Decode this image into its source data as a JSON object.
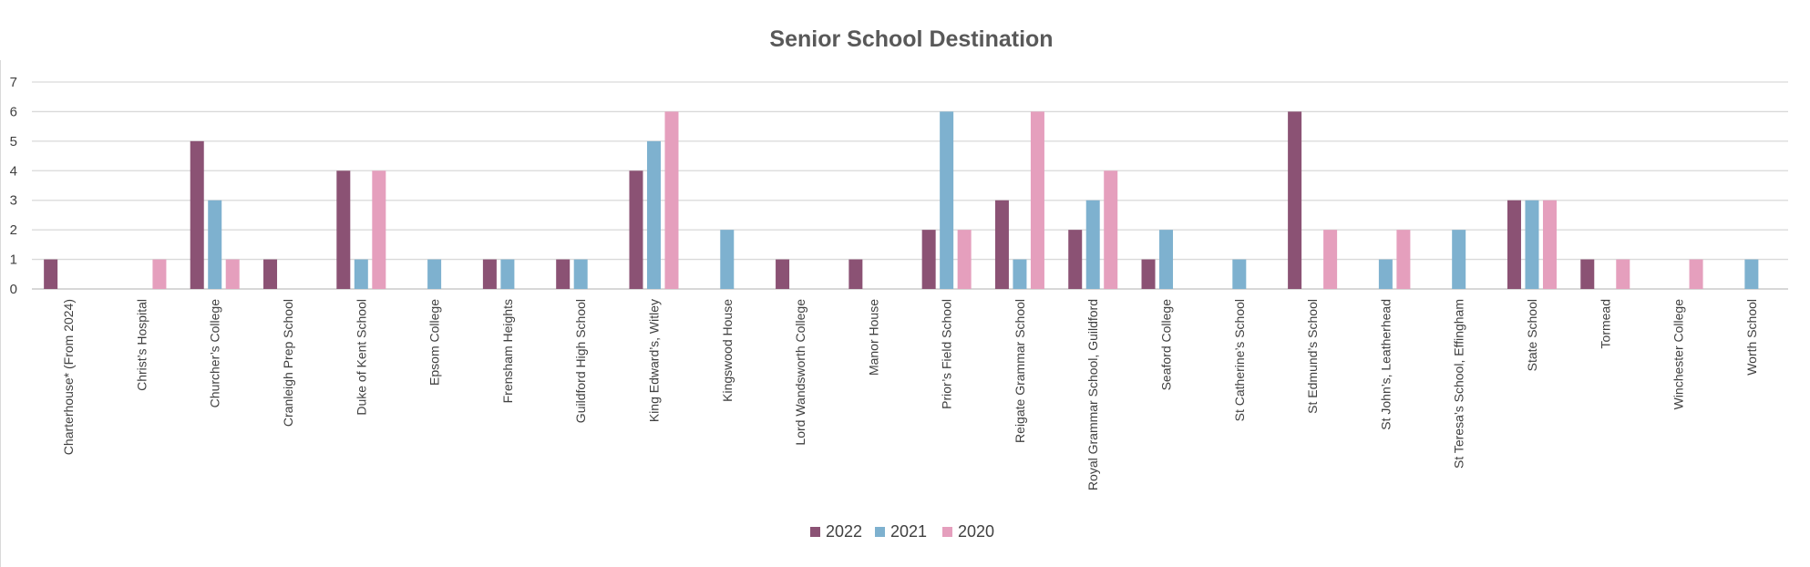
{
  "chart_data": {
    "type": "bar",
    "title": "Senior School Destination",
    "xlabel": "",
    "ylabel": "",
    "ylim": [
      0,
      7
    ],
    "yticks": [
      0,
      1,
      2,
      3,
      4,
      5,
      6,
      7
    ],
    "grid": true,
    "legend_position": "bottom",
    "categories": [
      "Charterhouse* (From 2024)",
      "Christ’s Hospital",
      "Churcher’s College",
      "Cranleigh Prep School",
      "Duke of Kent School",
      "Epsom College",
      "Frensham Heights",
      "Guildford High School",
      "King Edward’s, Witley",
      "Kingswood House",
      "Lord Wandsworth College",
      "Manor House",
      "Prior’s Field School",
      "Reigate Grammar School",
      "Royal Grammar School, Guildford",
      "Seaford College",
      "St Catherine’s School",
      "St Edmund’s School",
      "St John’s, Leatherhead",
      "St Teresa’s School, Effingham",
      "State School",
      "Tormead",
      "Winchester College",
      "Worth School"
    ],
    "series": [
      {
        "name": "2022",
        "color": "#8b5274",
        "values": [
          1,
          0,
          5,
          1,
          4,
          0,
          1,
          1,
          4,
          0,
          1,
          1,
          2,
          3,
          2,
          1,
          0,
          6,
          0,
          0,
          3,
          1,
          0,
          0
        ]
      },
      {
        "name": "2021",
        "color": "#7eb1cf",
        "values": [
          0,
          0,
          3,
          0,
          1,
          1,
          1,
          1,
          5,
          2,
          0,
          0,
          6,
          1,
          3,
          2,
          1,
          0,
          1,
          2,
          3,
          0,
          0,
          1
        ]
      },
      {
        "name": "2020",
        "color": "#e59fbd",
        "values": [
          0,
          1,
          1,
          0,
          4,
          0,
          0,
          0,
          6,
          0,
          0,
          0,
          2,
          6,
          4,
          0,
          0,
          2,
          2,
          0,
          3,
          1,
          1,
          0
        ]
      }
    ]
  }
}
